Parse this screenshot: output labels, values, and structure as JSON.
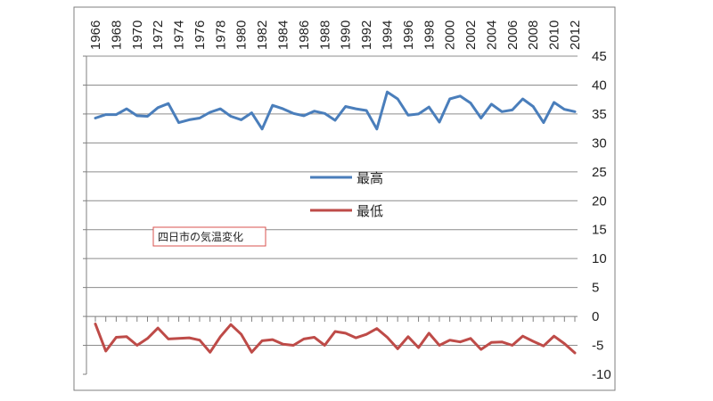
{
  "chart_data": {
    "type": "line",
    "title": "",
    "xlabel": "",
    "ylabel": "",
    "x": [
      1966,
      1967,
      1968,
      1969,
      1970,
      1971,
      1972,
      1973,
      1974,
      1975,
      1976,
      1977,
      1978,
      1979,
      1980,
      1981,
      1982,
      1983,
      1984,
      1985,
      1986,
      1987,
      1988,
      1989,
      1990,
      1991,
      1992,
      1993,
      1994,
      1995,
      1996,
      1997,
      1998,
      1999,
      2000,
      2001,
      2002,
      2003,
      2004,
      2005,
      2006,
      2007,
      2008,
      2009,
      2010,
      2011,
      2012
    ],
    "x_tick_labels": [
      "1966",
      "1968",
      "1970",
      "1972",
      "1974",
      "1976",
      "1978",
      "1980",
      "1982",
      "1984",
      "1986",
      "1988",
      "1990",
      "1992",
      "1994",
      "1996",
      "1998",
      "2000",
      "2002",
      "2004",
      "2006",
      "2008",
      "2010",
      "2012"
    ],
    "y_ticks": [
      "45",
      "40",
      "35",
      "30",
      "25",
      "20",
      "15",
      "10",
      "5",
      "0",
      "-5",
      "-10"
    ],
    "ylim": [
      -10,
      45
    ],
    "grid": true,
    "legend_position": "center",
    "annotation": "四日市の気温変化",
    "series": [
      {
        "name": "最高",
        "color": "#4a7ebb",
        "values": [
          34.3,
          34.9,
          34.9,
          35.9,
          34.7,
          34.6,
          36.1,
          36.8,
          33.5,
          34.0,
          34.3,
          35.3,
          35.9,
          34.6,
          34.0,
          35.2,
          32.4,
          36.5,
          35.9,
          35.1,
          34.7,
          35.5,
          35.1,
          33.9,
          36.3,
          35.9,
          35.6,
          32.4,
          38.8,
          37.6,
          34.8,
          35.0,
          36.2,
          33.6,
          37.6,
          38.1,
          36.9,
          34.3,
          36.7,
          35.4,
          35.7,
          37.6,
          36.3,
          33.5,
          37.0,
          35.8,
          35.4
        ]
      },
      {
        "name": "最低",
        "color": "#be4b48",
        "values": [
          -1.3,
          -6.0,
          -3.6,
          -3.5,
          -5.0,
          -3.8,
          -2.0,
          -3.9,
          -3.8,
          -3.7,
          -4.1,
          -6.2,
          -3.5,
          -1.4,
          -3.1,
          -6.2,
          -4.2,
          -4.0,
          -4.8,
          -5.0,
          -3.9,
          -3.6,
          -5.0,
          -2.6,
          -2.9,
          -3.7,
          -3.1,
          -2.1,
          -3.6,
          -5.6,
          -3.5,
          -5.4,
          -2.9,
          -5.0,
          -4.1,
          -4.4,
          -3.8,
          -5.7,
          -4.5,
          -4.4,
          -5.0,
          -3.4,
          -4.3,
          -5.1,
          -3.4,
          -4.7,
          -6.3
        ]
      }
    ]
  }
}
